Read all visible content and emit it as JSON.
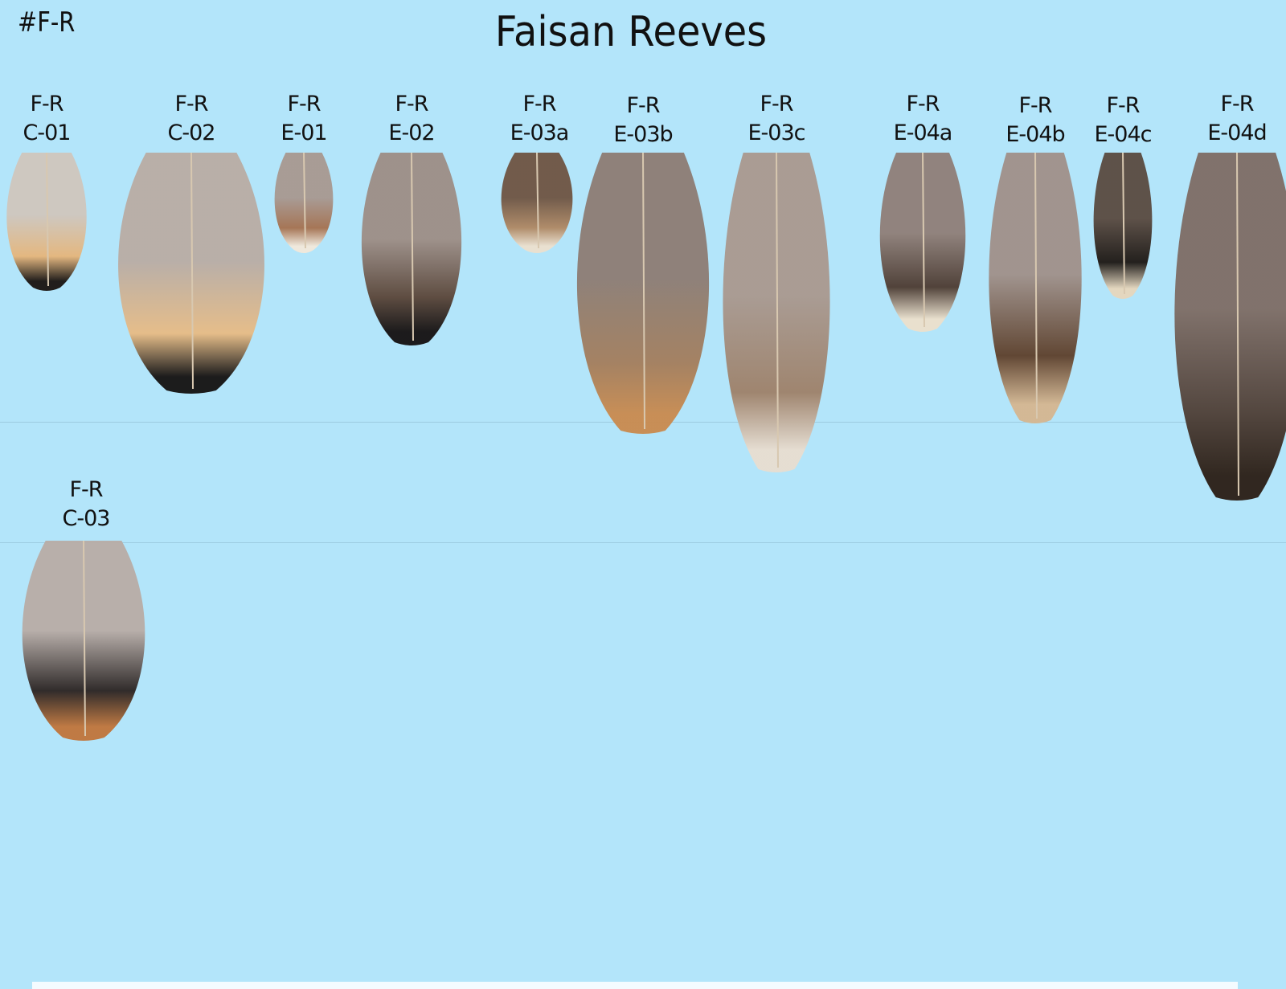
{
  "sheet": {
    "code": "#F-R",
    "title": "Faisan Reeves"
  },
  "feathers": [
    {
      "prefix": "F-R",
      "id": "C-01",
      "colors": [
        "#cfc6bd",
        "#e6b57a",
        "#1a1410"
      ]
    },
    {
      "prefix": "F-R",
      "id": "C-02",
      "colors": [
        "#b9aca4",
        "#e8bb84",
        "#141110"
      ]
    },
    {
      "prefix": "F-R",
      "id": "E-01",
      "colors": [
        "#a89890",
        "#a5704e",
        "#f2e8da"
      ]
    },
    {
      "prefix": "F-R",
      "id": "E-02",
      "colors": [
        "#9d8d85",
        "#5a4538",
        "#141010"
      ]
    },
    {
      "prefix": "F-R",
      "id": "E-03a",
      "colors": [
        "#6e5442",
        "#b08863",
        "#ece0ce"
      ]
    },
    {
      "prefix": "F-R",
      "id": "E-03b",
      "colors": [
        "#8d7c73",
        "#a47d5b",
        "#c98a4e"
      ]
    },
    {
      "prefix": "F-R",
      "id": "E-03c",
      "colors": [
        "#a9988e",
        "#9e8068",
        "#e8ddd0"
      ]
    },
    {
      "prefix": "F-R",
      "id": "E-04a",
      "colors": [
        "#8f7e77",
        "#4c3a30",
        "#ece0cc"
      ]
    },
    {
      "prefix": "F-R",
      "id": "E-04b",
      "colors": [
        "#a09089",
        "#5d3f2a",
        "#d5b690"
      ]
    },
    {
      "prefix": "F-R",
      "id": "E-04c",
      "colors": [
        "#5a4a40",
        "#1c1612",
        "#e6d6bc"
      ]
    },
    {
      "prefix": "F-R",
      "id": "E-04d",
      "colors": [
        "#7e6c64",
        "#4e3e35",
        "#2a1d14"
      ]
    },
    {
      "prefix": "F-R",
      "id": "C-03",
      "colors": [
        "#b8aca6",
        "#2a2220",
        "#c0743a"
      ]
    }
  ]
}
